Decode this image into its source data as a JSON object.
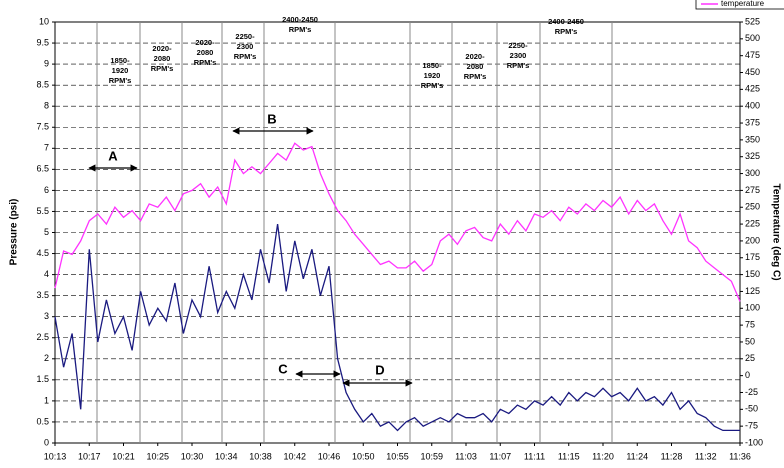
{
  "chart_data": {
    "type": "line",
    "ylabel": "Pressure (psi)",
    "y2label": "Temperature (deg C)",
    "categories": [
      "10:13",
      null,
      null,
      null,
      "10:17",
      null,
      null,
      null,
      "10:21",
      null,
      null,
      null,
      "10:25",
      null,
      null,
      null,
      "10:30",
      null,
      null,
      null,
      "10:34",
      null,
      null,
      null,
      "10:38",
      null,
      null,
      null,
      "10:42",
      null,
      null,
      null,
      "10:46",
      null,
      null,
      null,
      "10:50",
      null,
      null,
      null,
      "10:55",
      null,
      null,
      null,
      "10:59",
      null,
      null,
      null,
      "11:03",
      null,
      null,
      null,
      "11:07",
      null,
      null,
      null,
      "11:11",
      null,
      null,
      null,
      "11:15",
      null,
      null,
      null,
      "11:20",
      null,
      null,
      null,
      "11:24",
      null,
      null,
      null,
      "11:28",
      null,
      null,
      null,
      "11:32",
      null,
      null,
      null,
      "11:36"
    ],
    "series": [
      {
        "color": "#1a1a80",
        "axis": "y",
        "values": [
          3.0,
          1.8,
          2.6,
          0.8,
          4.6,
          2.4,
          3.4,
          2.6,
          3.0,
          2.2,
          3.6,
          2.8,
          3.2,
          2.9,
          3.8,
          2.6,
          3.4,
          3.0,
          4.2,
          3.1,
          3.6,
          3.2,
          4.0,
          3.4,
          4.6,
          3.8,
          5.2,
          3.6,
          4.8,
          3.9,
          4.6,
          3.5,
          4.2,
          2.0,
          1.2,
          0.8,
          0.5,
          0.7,
          0.4,
          0.5,
          0.3,
          0.5,
          0.6,
          0.4,
          0.5,
          0.6,
          0.5,
          0.7,
          0.6,
          0.6,
          0.7,
          0.5,
          0.8,
          0.7,
          0.9,
          0.8,
          1.0,
          0.9,
          1.1,
          0.9,
          1.2,
          1.0,
          1.2,
          1.1,
          1.3,
          1.1,
          1.2,
          1.0,
          1.3,
          1.0,
          1.1,
          0.9,
          1.2,
          0.8,
          1.0,
          0.7,
          0.6,
          0.4,
          0.3,
          0.3,
          0.3
        ]
      },
      {
        "name": "temperature",
        "color": "#ff33ff",
        "axis": "y2",
        "values": [
          130,
          185,
          180,
          200,
          230,
          240,
          225,
          250,
          235,
          245,
          230,
          255,
          250,
          265,
          245,
          270,
          275,
          285,
          265,
          280,
          255,
          320,
          300,
          310,
          300,
          315,
          330,
          320,
          345,
          335,
          340,
          300,
          270,
          245,
          230,
          210,
          195,
          180,
          165,
          170,
          160,
          160,
          170,
          155,
          165,
          200,
          210,
          195,
          215,
          220,
          205,
          200,
          225,
          210,
          230,
          215,
          240,
          235,
          245,
          230,
          250,
          240,
          255,
          245,
          260,
          250,
          265,
          240,
          260,
          245,
          255,
          230,
          210,
          240,
          200,
          190,
          170,
          160,
          150,
          140,
          110
        ]
      }
    ],
    "ylim": [
      0,
      10
    ],
    "yticks": [
      0,
      0.5,
      1,
      1.5,
      2,
      2.5,
      3,
      3.5,
      4,
      4.5,
      5,
      5.5,
      6,
      6.5,
      7,
      7.5,
      8,
      8.5,
      9,
      9.5,
      10
    ],
    "y2lim": [
      -100,
      525
    ],
    "y2ticks": [
      -100,
      -75,
      -50,
      -25,
      0,
      25,
      50,
      75,
      100,
      125,
      150,
      175,
      200,
      225,
      250,
      275,
      300,
      325,
      350,
      375,
      400,
      425,
      450,
      475,
      500,
      525
    ],
    "grid": true,
    "legend": "top-right",
    "annotations": [
      {
        "text": [
          "1850-",
          "1920",
          "RPM's"
        ]
      },
      {
        "text": [
          "2020-",
          "2080",
          "RPM's"
        ]
      },
      {
        "text": [
          "2020-",
          "2080",
          "RPM's"
        ]
      },
      {
        "text": [
          "2250-",
          "2300",
          "RPM's"
        ]
      },
      {
        "text": [
          "2400-2450",
          "RPM's"
        ]
      },
      {
        "text": [
          "1850-",
          "1920",
          "RPM's"
        ]
      },
      {
        "text": [
          "2020-",
          "2080",
          "RPM's"
        ]
      },
      {
        "text": [
          "2250-",
          "2300",
          "RPM's"
        ]
      },
      {
        "text": [
          "2400-2450",
          "RPM's"
        ]
      }
    ],
    "markers": [
      "A",
      "B",
      "C",
      "D"
    ]
  }
}
